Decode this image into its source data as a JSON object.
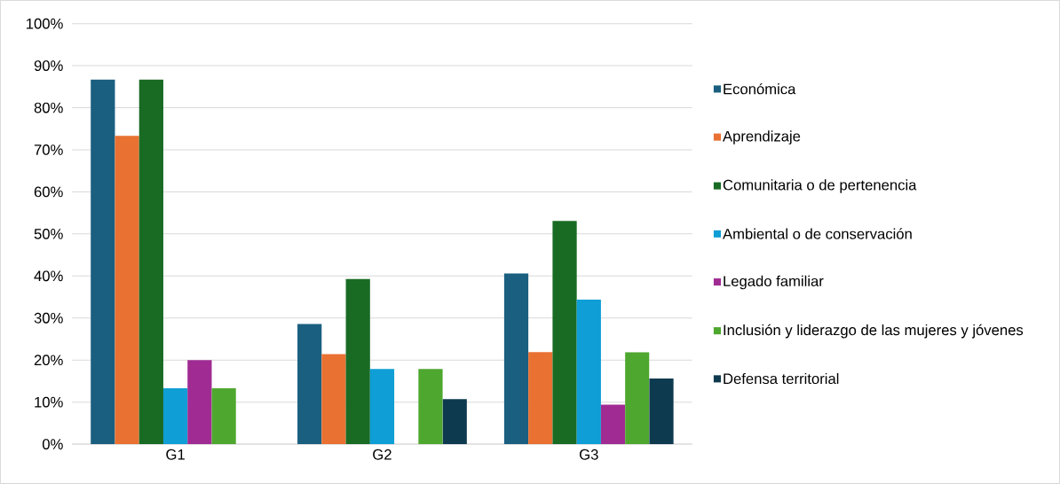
{
  "chart_data": {
    "type": "bar",
    "categories": [
      "G1",
      "G2",
      "G3"
    ],
    "series": [
      {
        "name": "Económica",
        "color": "#1a5f80",
        "values": [
          86.7,
          28.6,
          40.6
        ]
      },
      {
        "name": "Aprendizaje",
        "color": "#e97132",
        "values": [
          73.3,
          21.4,
          21.9
        ]
      },
      {
        "name": "Comunitaria o de pertenencia",
        "color": "#196b24",
        "values": [
          86.7,
          39.3,
          53.1
        ]
      },
      {
        "name": "Ambiental o de conservación",
        "color": "#0f9ed5",
        "values": [
          13.3,
          17.9,
          34.4
        ]
      },
      {
        "name": "Legado familiar",
        "color": "#a02b93",
        "values": [
          20.0,
          null,
          9.4
        ]
      },
      {
        "name": "Inclusión y liderazgo de las mujeres y jóvenes",
        "color": "#4ea72e",
        "values": [
          13.3,
          17.9,
          21.9
        ]
      },
      {
        "name": "Defensa territorial",
        "color": "#0e3a4f",
        "values": [
          null,
          10.7,
          15.6
        ]
      }
    ],
    "ylim": [
      0,
      100
    ],
    "yticks": [
      {
        "value": 0,
        "label": "0%"
      },
      {
        "value": 10,
        "label": "10%"
      },
      {
        "value": 20,
        "label": "20%"
      },
      {
        "value": 30,
        "label": "30%"
      },
      {
        "value": 40,
        "label": "40%"
      },
      {
        "value": 50,
        "label": "50%"
      },
      {
        "value": 60,
        "label": "60%"
      },
      {
        "value": 70,
        "label": "70%"
      },
      {
        "value": 80,
        "label": "80%"
      },
      {
        "value": 90,
        "label": "90%"
      },
      {
        "value": 100,
        "label": "100%"
      }
    ],
    "grid": "y",
    "legend": "right"
  }
}
